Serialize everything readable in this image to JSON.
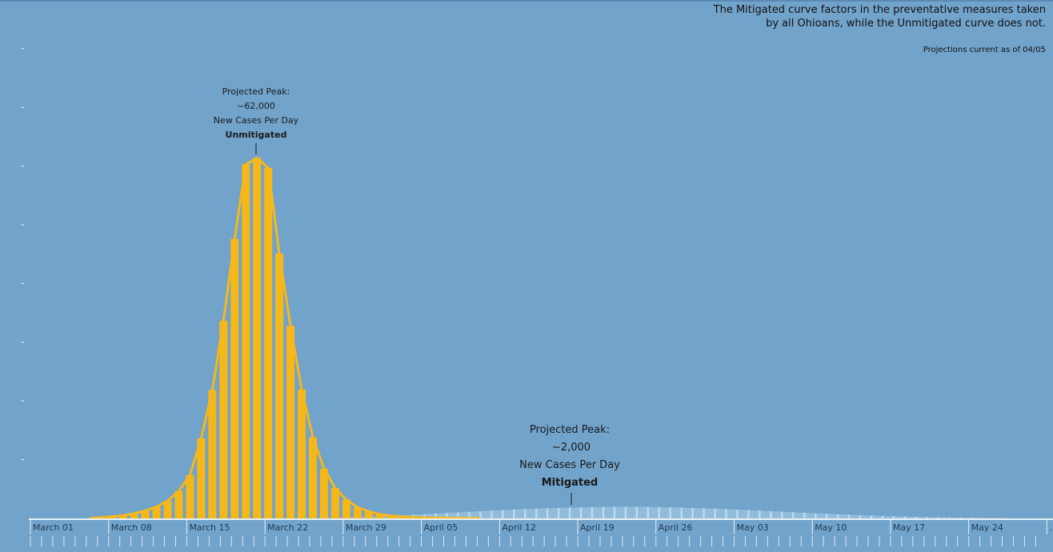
{
  "note": {
    "line1": "The Mitigated curve factors in the preventative measures taken",
    "line2": "by all Ohioans, while the Unmitigated curve does not."
  },
  "as_of": "Projections current as of 04/05",
  "annotations": {
    "unmitigated": {
      "line1": "Projected Peak:",
      "line2": "~62,000",
      "line3": "New Cases Per Day",
      "line4": "Unmitigated"
    },
    "mitigated": {
      "line1": "Projected Peak:",
      "line2": "~2,000",
      "line3": "New Cases Per Day",
      "line4": "Mitigated"
    }
  },
  "colors": {
    "background": "#72a3cb",
    "unmitigated": "#f6b819",
    "mitigated": "#bcdcf0"
  },
  "chart_data": {
    "type": "bar",
    "x_start": "2020-03-01",
    "x_end": "2020-05-30",
    "ylim": [
      0,
      62000
    ],
    "grid": false,
    "xlabels": [
      "March 01",
      "March 08",
      "March 15",
      "March 22",
      "March 29",
      "April 05",
      "April 12",
      "April 19",
      "April 26",
      "May 03",
      "May 10",
      "May 17",
      "May 24",
      ".."
    ],
    "series": [
      {
        "name": "Unmitigated",
        "start_date": "2020-03-06",
        "values": [
          0,
          150,
          300,
          500,
          850,
          1300,
          2000,
          3000,
          4700,
          7400,
          13700,
          22000,
          33900,
          47900,
          60700,
          61800,
          60100,
          45400,
          33000,
          22100,
          13900,
          8500,
          5200,
          3200,
          1900,
          1200,
          700,
          450,
          300,
          200,
          120,
          80,
          50,
          30,
          20,
          10
        ]
      },
      {
        "name": "Mitigated",
        "start_date": "2020-03-24",
        "values": [
          5,
          20,
          40,
          70,
          110,
          160,
          220,
          290,
          370,
          450,
          540,
          630,
          730,
          830,
          930,
          1030,
          1130,
          1230,
          1330,
          1420,
          1510,
          1590,
          1670,
          1740,
          1800,
          1860,
          1910,
          1950,
          1980,
          2000,
          2000,
          1990,
          1970,
          1940,
          1900,
          1850,
          1790,
          1730,
          1660,
          1580,
          1500,
          1420,
          1330,
          1240,
          1150,
          1060,
          970,
          880,
          790,
          710,
          630,
          560,
          490,
          430,
          370,
          320,
          270,
          230,
          190,
          160,
          130,
          100,
          80,
          60,
          40
        ]
      }
    ]
  }
}
